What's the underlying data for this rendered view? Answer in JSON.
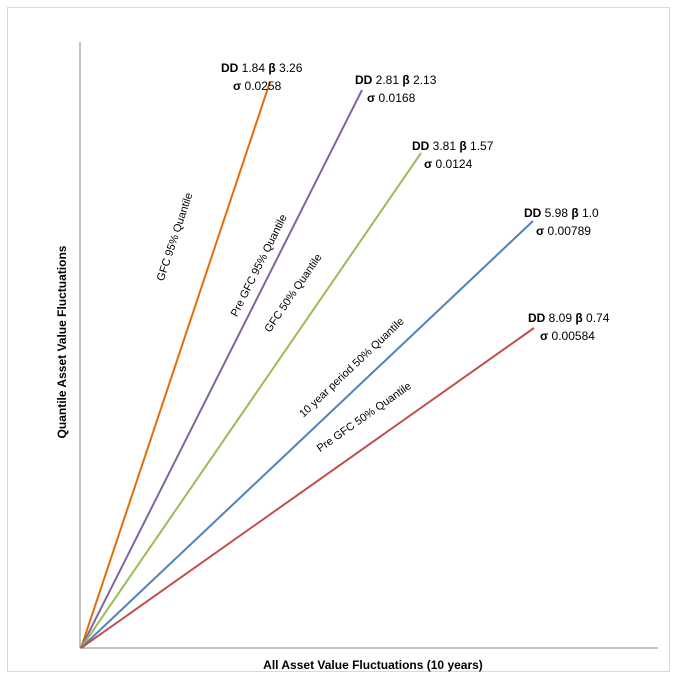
{
  "chart_data": {
    "type": "line",
    "title": "",
    "xlabel": "All Asset Value Fluctuations (10 years)",
    "ylabel": "Quantile Asset Value Fluctuations",
    "grid": false,
    "legend": "none",
    "x_ticks_shown": false,
    "y_ticks_shown": false,
    "series": [
      {
        "name": "GFC 95% Quantile",
        "color": "#e36c09",
        "slope": 3.26,
        "annotation": {
          "dd_label": "DD",
          "dd_value": "1.84",
          "beta_label": "β",
          "beta_value": "3.26",
          "sigma_label": "σ",
          "sigma_value": "0.0258"
        }
      },
      {
        "name": "Pre GFC 95% Quantile",
        "color": "#8064a2",
        "slope": 2.13,
        "annotation": {
          "dd_label": "DD",
          "dd_value": "2.81",
          "beta_label": "β",
          "beta_value": "2.13",
          "sigma_label": "σ",
          "sigma_value": "0.0168"
        }
      },
      {
        "name": "GFC 50% Quantile",
        "color": "#9bbb59",
        "slope": 1.57,
        "annotation": {
          "dd_label": "DD",
          "dd_value": "3.81",
          "beta_label": "β",
          "beta_value": "1.57",
          "sigma_label": "σ",
          "sigma_value": "0.0124"
        }
      },
      {
        "name": "10 year period 50% Quantile",
        "color": "#4f81bd",
        "slope": 1.0,
        "annotation": {
          "dd_label": "DD",
          "dd_value": "5.98",
          "beta_label": "β",
          "beta_value": "1.0",
          "sigma_label": "σ",
          "sigma_value": "0.00789"
        }
      },
      {
        "name": "Pre GFC 50% Quantile",
        "color": "#c0504d",
        "slope": 0.74,
        "annotation": {
          "dd_label": "DD",
          "dd_value": "8.09",
          "beta_label": "β",
          "beta_value": "0.74",
          "sigma_label": "σ",
          "sigma_value": "0.00584"
        }
      }
    ]
  }
}
